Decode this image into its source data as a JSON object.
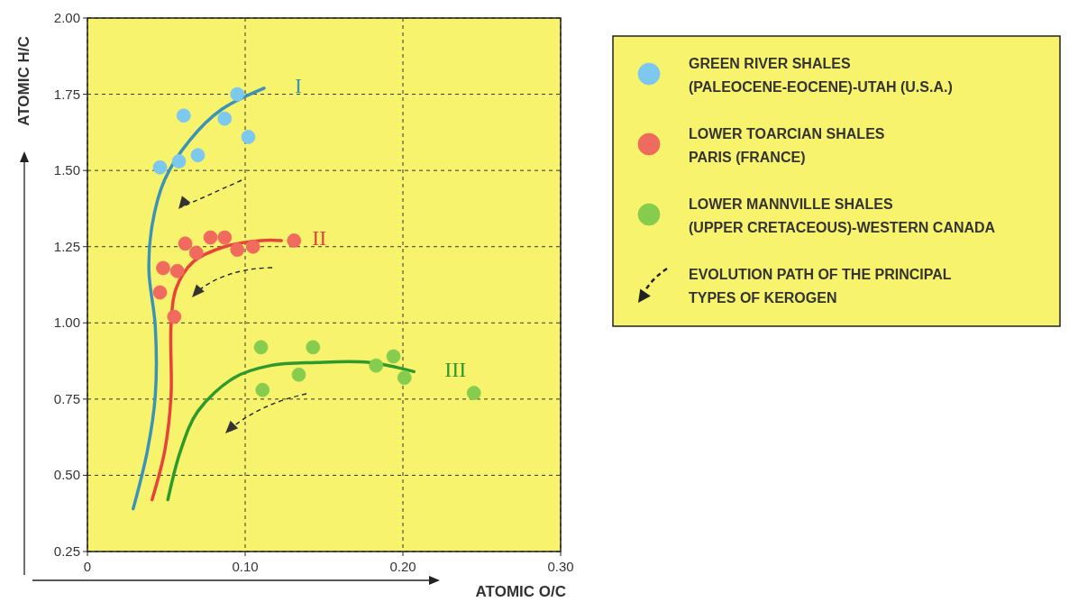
{
  "chart_data": {
    "type": "scatter",
    "xlabel": "ATOMIC O/C",
    "ylabel": "ATOMIC H/C",
    "xlim": [
      0,
      0.3
    ],
    "xticks": [
      0,
      {
        "value": 0.1,
        "label": "0.10"
      },
      {
        "value": 0.2,
        "label": "0.20"
      },
      {
        "value": 0.3,
        "label": "0.30"
      }
    ],
    "ylim": [
      0.25,
      2
    ],
    "yticks": [
      {
        "value": 0.25,
        "label": "0.25"
      },
      {
        "value": 0.5,
        "label": "0.50"
      },
      {
        "value": 0.75,
        "label": "0.75"
      },
      {
        "value": 1,
        "label": "1.00"
      },
      {
        "value": 1.25,
        "label": "1.25"
      },
      {
        "value": 1.5,
        "label": "1.50"
      },
      {
        "value": 1.75,
        "label": "1.75"
      },
      {
        "value": 2,
        "label": "2.00"
      }
    ],
    "grid": true,
    "legend": "right",
    "marker": "circle",
    "series": [
      {
        "type": "scatter",
        "name": "GREEN RIVER SHALES\n(PALEOCENE-EOCENE)-UTAH (U.S.A.)",
        "color": "#7cc8ee",
        "x": [
          0.046,
          0.058,
          0.07,
          0.061,
          0.087,
          0.095,
          0.102
        ],
        "values": [
          1.51,
          1.53,
          1.55,
          1.68,
          1.67,
          1.75,
          1.61
        ]
      },
      {
        "type": "scatter",
        "name": "LOWER TOARCIAN SHALES\nPARIS (FRANCE)",
        "color": "#f06a5e",
        "x": [
          0.046,
          0.048,
          0.057,
          0.055,
          0.062,
          0.069,
          0.078,
          0.087,
          0.095,
          0.105,
          0.131
        ],
        "values": [
          1.1,
          1.18,
          1.17,
          1.02,
          1.26,
          1.23,
          1.28,
          1.28,
          1.24,
          1.25,
          1.27
        ]
      },
      {
        "type": "scatter",
        "name": "LOWER MANNVILLE SHALES\n(UPPER CRETACEOUS)-WESTERN CANADA",
        "color": "#86cc4e",
        "x": [
          0.11,
          0.111,
          0.134,
          0.143,
          0.183,
          0.194,
          0.201,
          0.245
        ],
        "values": [
          0.92,
          0.78,
          0.83,
          0.92,
          0.86,
          0.89,
          0.82,
          0.77
        ]
      },
      {
        "type": "line",
        "name": "I",
        "color": "#3b93b8",
        "marker": "none",
        "line_style": "solid",
        "x": [
          0.029,
          0.038,
          0.043,
          0.043,
          0.039,
          0.041,
          0.049,
          0.065,
          0.085,
          0.112
        ],
        "values": [
          0.39,
          0.58,
          0.76,
          0.99,
          1.17,
          1.32,
          1.47,
          1.6,
          1.7,
          1.77
        ]
      },
      {
        "type": "line",
        "name": "II",
        "color": "#e8433a",
        "marker": "none",
        "line_style": "solid",
        "x": [
          0.041,
          0.049,
          0.053,
          0.053,
          0.056,
          0.067,
          0.087,
          0.11,
          0.123
        ],
        "values": [
          0.42,
          0.58,
          0.76,
          0.99,
          1.11,
          1.2,
          1.25,
          1.27,
          1.27
        ]
      },
      {
        "type": "line",
        "name": "III",
        "color": "#2e9a2e",
        "marker": "none",
        "line_style": "solid",
        "x": [
          0.051,
          0.059,
          0.07,
          0.093,
          0.116,
          0.145,
          0.179,
          0.207
        ],
        "values": [
          0.42,
          0.58,
          0.71,
          0.82,
          0.86,
          0.87,
          0.87,
          0.84
        ]
      }
    ],
    "annotations": [
      "EVOLUTION PATH OF THE PRINCIPAL\nTYPES OF KEROGEN"
    ]
  }
}
